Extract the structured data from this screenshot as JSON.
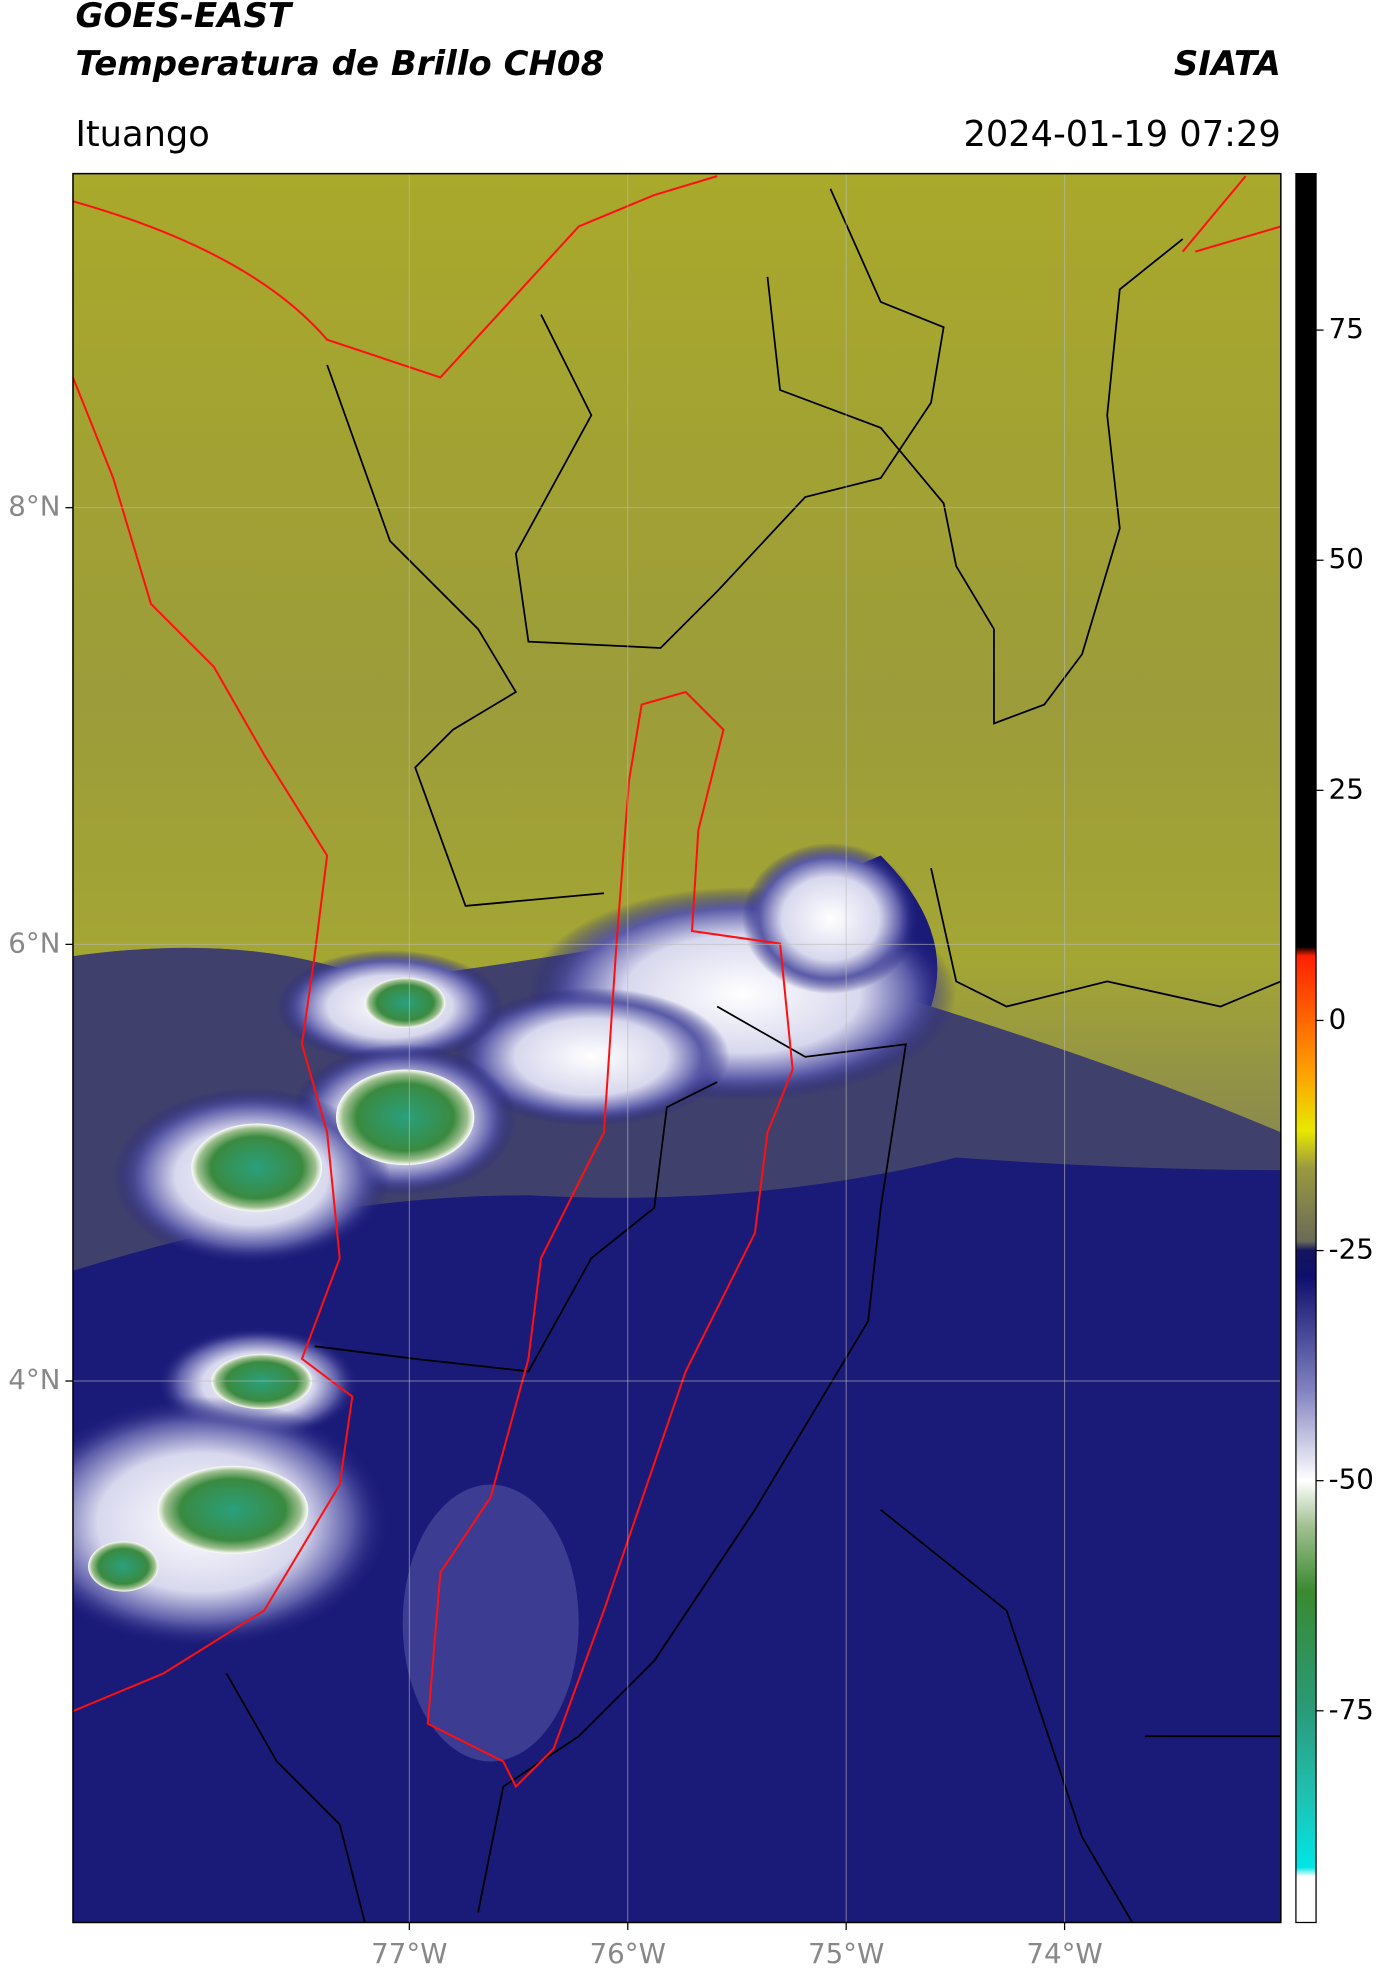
{
  "chart_data": {
    "type": "map",
    "title": "GOES-EAST",
    "subtitle": "Temperatura de Brillo CH08",
    "source": "SIATA",
    "location": "Ituango",
    "datetime": "2024-01-19 07:29",
    "xlim": [
      -78.54,
      -73.01
    ],
    "ylim": [
      1.52,
      9.53
    ],
    "xticks": [
      {
        "value": -77,
        "label": "77°W"
      },
      {
        "value": -76,
        "label": "76°W"
      },
      {
        "value": -75,
        "label": "75°W"
      },
      {
        "value": -74,
        "label": "74°W"
      }
    ],
    "yticks": [
      {
        "value": 4,
        "label": "4°N"
      },
      {
        "value": 6,
        "label": "6°N"
      },
      {
        "value": 8,
        "label": "8°N"
      }
    ],
    "grid": true,
    "colorbar": {
      "clim": [
        -98,
        92
      ],
      "ticks": [
        -75,
        -50,
        -25,
        0,
        25,
        50,
        75
      ],
      "colormap": [
        {
          "value": -98,
          "color": "#ffffff"
        },
        {
          "value": -93,
          "color": "#ffffff"
        },
        {
          "value": -92,
          "color": "#00e5e5"
        },
        {
          "value": -84,
          "color": "#20c0b0"
        },
        {
          "value": -75,
          "color": "#2a9a7a"
        },
        {
          "value": -62,
          "color": "#3a8a30"
        },
        {
          "value": -55,
          "color": "#a0c090"
        },
        {
          "value": -50,
          "color": "#ffffff"
        },
        {
          "value": -40,
          "color": "#8080c0"
        },
        {
          "value": -28,
          "color": "#10106e"
        },
        {
          "value": -25,
          "color": "#14145e"
        },
        {
          "value": -24,
          "color": "#6a6a58"
        },
        {
          "value": -16,
          "color": "#9a9a40"
        },
        {
          "value": -12,
          "color": "#e8e800"
        },
        {
          "value": -5,
          "color": "#ff9a00"
        },
        {
          "value": 7,
          "color": "#ff2000"
        },
        {
          "value": 8,
          "color": "#000000"
        },
        {
          "value": 92,
          "color": "#000000"
        }
      ]
    }
  }
}
